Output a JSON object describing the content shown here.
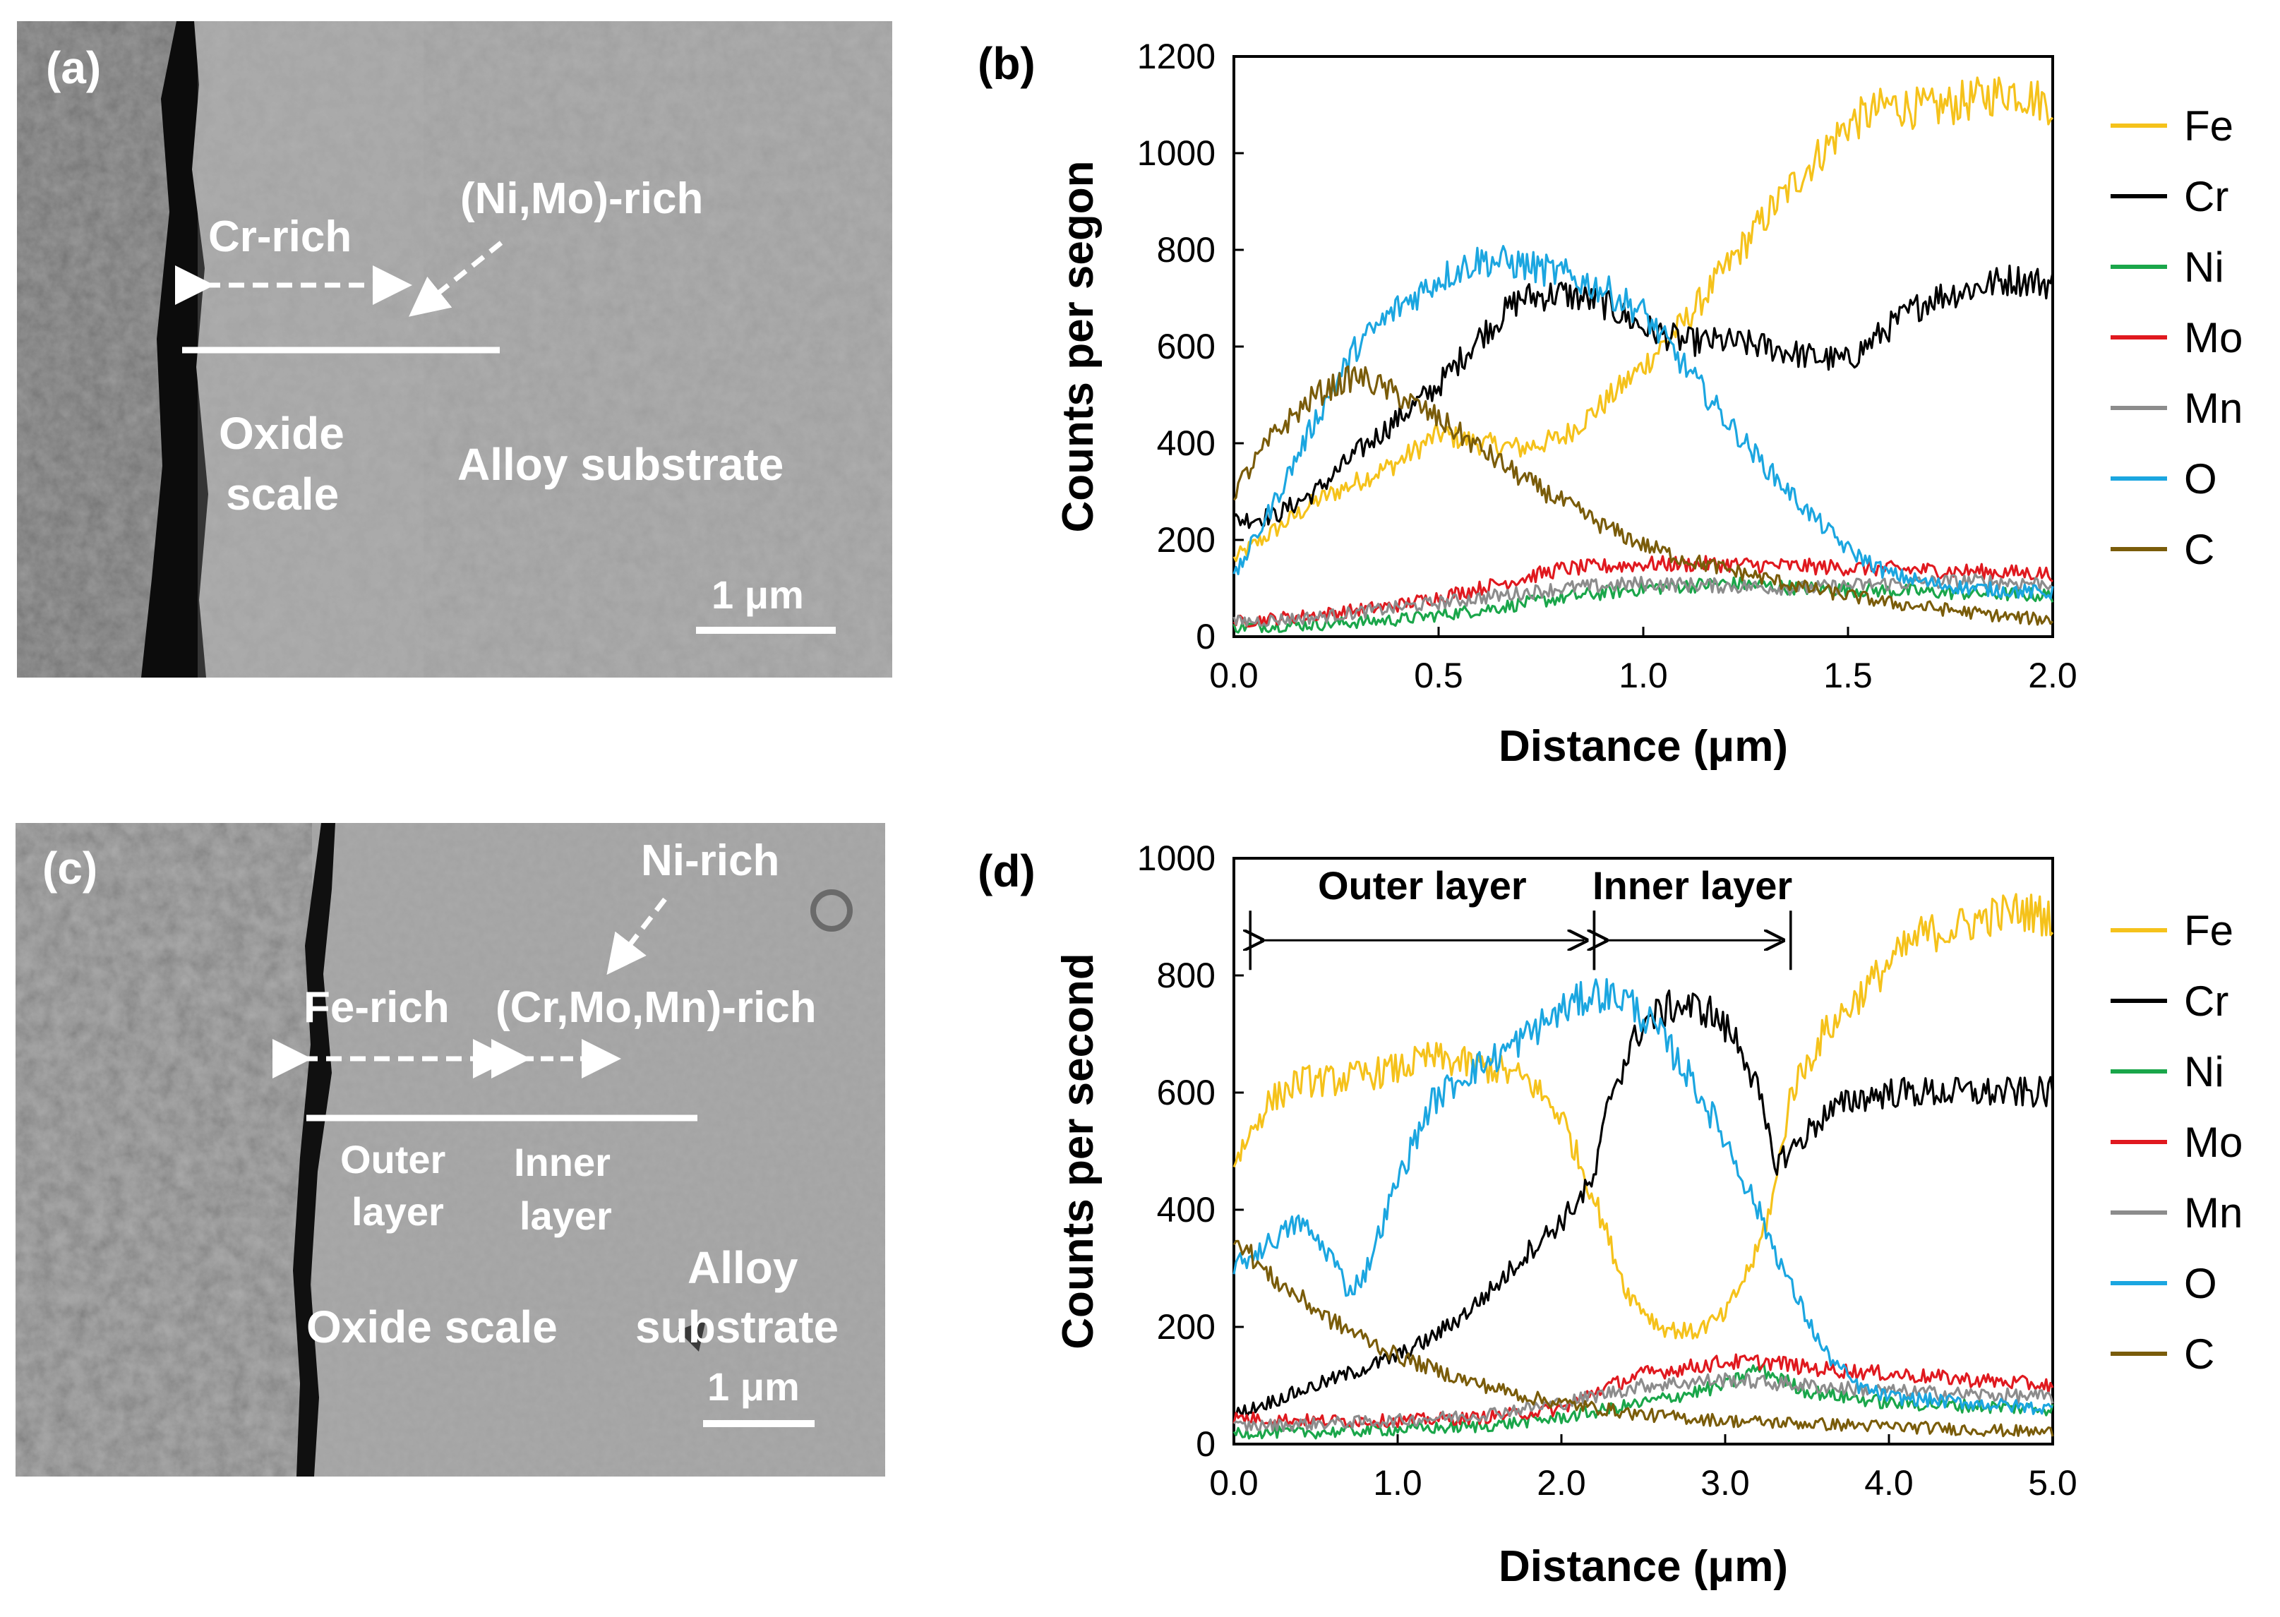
{
  "panels": {
    "a": {
      "label": "(a)",
      "annotations": {
        "cr_rich": "Cr-rich",
        "ni_mo_rich": "(Ni,Mo)-rich",
        "oxide_scale_1": "Oxide",
        "oxide_scale_2": "scale",
        "alloy_substrate": "Alloy substrate",
        "scale_bar": "1 μm"
      }
    },
    "b": {
      "label": "(b)"
    },
    "c": {
      "label": "(c)",
      "annotations": {
        "ni_rich": "Ni-rich",
        "fe_rich": "Fe-rich",
        "cr_mo_mn_rich": "(Cr,Mo,Mn)-rich",
        "outer_layer_1": "Outer",
        "outer_layer_2": "layer",
        "inner_layer_1": "Inner",
        "inner_layer_2": "layer",
        "oxide_scale": "Oxide scale",
        "alloy_substrate_1": "Alloy",
        "alloy_substrate_2": "substrate",
        "scale_bar": "1 μm"
      }
    },
    "d": {
      "label": "(d)"
    }
  },
  "colors": {
    "Fe": "#f5c21b",
    "Cr": "#000000",
    "Ni": "#1aa64a",
    "Mo": "#e0191f",
    "Mn": "#8c8c8c",
    "O": "#1ba6e0",
    "C": "#7a5c0a"
  },
  "chart_data": [
    {
      "type": "line",
      "panel": "b",
      "xlabel": "Distance (μm)",
      "ylabel": "Counts per segon",
      "xlim": [
        0,
        2.0
      ],
      "ylim": [
        0,
        1200
      ],
      "xticks": [
        0.0,
        0.5,
        1.0,
        1.5,
        2.0
      ],
      "xtick_labels": [
        "0.0",
        "0.5",
        "1.0",
        "1.5",
        "2.0"
      ],
      "yticks": [
        0,
        200,
        400,
        600,
        800,
        1000,
        1200
      ],
      "ytick_labels": [
        "0",
        "200",
        "400",
        "600",
        "800",
        "1000",
        "1200"
      ],
      "legend": [
        "Fe",
        "Cr",
        "Ni",
        "Mo",
        "Mn",
        "O",
        "C"
      ],
      "legend_position": "right",
      "noise": 35,
      "series": [
        {
          "name": "Fe",
          "x": [
            0,
            0.1,
            0.2,
            0.3,
            0.4,
            0.5,
            0.6,
            0.7,
            0.8,
            0.9,
            1.0,
            1.1,
            1.2,
            1.3,
            1.4,
            1.5,
            1.6,
            1.7,
            1.8,
            1.9,
            2.0
          ],
          "y": [
            160,
            220,
            280,
            320,
            360,
            420,
            400,
            390,
            410,
            480,
            560,
            650,
            760,
            870,
            970,
            1060,
            1100,
            1090,
            1110,
            1130,
            1100
          ]
        },
        {
          "name": "Cr",
          "x": [
            0,
            0.1,
            0.2,
            0.3,
            0.4,
            0.5,
            0.6,
            0.7,
            0.8,
            0.9,
            1.0,
            1.1,
            1.2,
            1.3,
            1.4,
            1.5,
            1.6,
            1.7,
            1.8,
            1.9,
            2.0
          ],
          "y": [
            240,
            250,
            300,
            380,
            450,
            520,
            620,
            700,
            710,
            690,
            640,
            610,
            610,
            600,
            580,
            570,
            640,
            700,
            720,
            740,
            730
          ]
        },
        {
          "name": "Ni",
          "x": [
            0,
            0.2,
            0.4,
            0.6,
            0.8,
            1.0,
            1.2,
            1.4,
            1.6,
            1.8,
            2.0
          ],
          "y": [
            20,
            25,
            35,
            55,
            80,
            100,
            110,
            100,
            95,
            90,
            85
          ]
        },
        {
          "name": "Mo",
          "x": [
            0,
            0.2,
            0.4,
            0.6,
            0.8,
            1.0,
            1.2,
            1.4,
            1.6,
            1.8,
            2.0
          ],
          "y": [
            30,
            45,
            65,
            100,
            140,
            150,
            150,
            145,
            140,
            135,
            130
          ]
        },
        {
          "name": "Mn",
          "x": [
            0,
            0.2,
            0.4,
            0.6,
            0.8,
            1.0,
            1.2,
            1.4,
            1.6,
            1.8,
            2.0
          ],
          "y": [
            30,
            40,
            60,
            80,
            100,
            110,
            105,
            100,
            110,
            115,
            110
          ]
        },
        {
          "name": "O",
          "x": [
            0,
            0.1,
            0.2,
            0.3,
            0.4,
            0.5,
            0.6,
            0.7,
            0.8,
            0.9,
            1.0,
            1.1,
            1.2,
            1.3,
            1.4,
            1.5,
            1.6,
            1.7,
            1.8,
            1.9,
            2.0
          ],
          "y": [
            120,
            280,
            450,
            600,
            680,
            740,
            780,
            770,
            750,
            720,
            670,
            560,
            450,
            350,
            260,
            180,
            130,
            110,
            100,
            95,
            90
          ]
        },
        {
          "name": "C",
          "x": [
            0,
            0.1,
            0.2,
            0.3,
            0.4,
            0.5,
            0.6,
            0.7,
            0.8,
            0.9,
            1.0,
            1.1,
            1.2,
            1.3,
            1.4,
            1.5,
            1.6,
            1.7,
            1.8,
            1.9,
            2.0
          ],
          "y": [
            300,
            420,
            500,
            540,
            500,
            450,
            390,
            330,
            280,
            230,
            190,
            160,
            140,
            120,
            100,
            85,
            70,
            60,
            50,
            40,
            35
          ]
        }
      ]
    },
    {
      "type": "line",
      "panel": "d",
      "xlabel": "Distance (μm)",
      "ylabel": "Counts per second",
      "xlim": [
        0,
        5.0
      ],
      "ylim": [
        0,
        1000
      ],
      "xticks": [
        0.0,
        1.0,
        2.0,
        3.0,
        4.0,
        5.0
      ],
      "xtick_labels": [
        "0.0",
        "1.0",
        "2.0",
        "3.0",
        "4.0",
        "5.0"
      ],
      "yticks": [
        0,
        200,
        400,
        600,
        800,
        1000
      ],
      "ytick_labels": [
        "0",
        "200",
        "400",
        "600",
        "800",
        "1000"
      ],
      "legend": [
        "Fe",
        "Cr",
        "Ni",
        "Mo",
        "Mn",
        "O",
        "C"
      ],
      "legend_position": "right",
      "noise": 28,
      "annotations": [
        {
          "text": "Outer layer",
          "from": 0.1,
          "to": 2.2,
          "y": 860
        },
        {
          "text": "Inner layer",
          "from": 2.2,
          "to": 3.4,
          "y": 860
        }
      ],
      "series": [
        {
          "name": "Fe",
          "x": [
            0,
            0.2,
            0.4,
            0.6,
            0.8,
            1.0,
            1.2,
            1.4,
            1.6,
            1.8,
            2.0,
            2.2,
            2.4,
            2.6,
            2.8,
            3.0,
            3.2,
            3.3,
            3.4,
            3.6,
            3.8,
            4.0,
            4.2,
            4.4,
            4.6,
            4.8,
            5.0
          ],
          "y": [
            480,
            580,
            620,
            620,
            630,
            640,
            660,
            650,
            640,
            620,
            560,
            420,
            260,
            200,
            190,
            220,
            330,
            430,
            600,
            700,
            760,
            820,
            870,
            880,
            900,
            910,
            900
          ]
        },
        {
          "name": "Cr",
          "x": [
            0,
            0.2,
            0.4,
            0.6,
            0.8,
            1.0,
            1.2,
            1.4,
            1.6,
            1.8,
            2.0,
            2.2,
            2.3,
            2.5,
            2.7,
            2.9,
            3.1,
            3.2,
            3.3,
            3.4,
            3.6,
            3.8,
            4.0,
            4.2,
            4.4,
            4.6,
            4.8,
            5.0
          ],
          "y": [
            50,
            70,
            90,
            110,
            130,
            150,
            180,
            220,
            270,
            330,
            380,
            450,
            600,
            720,
            750,
            740,
            680,
            600,
            480,
            500,
            560,
            590,
            600,
            600,
            600,
            600,
            600,
            600
          ]
        },
        {
          "name": "Ni",
          "x": [
            0,
            0.5,
            1.0,
            1.5,
            2.0,
            2.5,
            3.0,
            3.2,
            3.5,
            4.0,
            4.5,
            5.0
          ],
          "y": [
            20,
            20,
            25,
            30,
            45,
            70,
            100,
            130,
            90,
            70,
            65,
            60
          ]
        },
        {
          "name": "Mo",
          "x": [
            0,
            0.5,
            1.0,
            1.5,
            2.0,
            2.2,
            2.5,
            3.0,
            3.3,
            3.5,
            4.0,
            4.5,
            5.0
          ],
          "y": [
            45,
            40,
            40,
            45,
            60,
            90,
            120,
            140,
            140,
            130,
            120,
            110,
            100
          ]
        },
        {
          "name": "Mn",
          "x": [
            0,
            0.5,
            1.0,
            1.5,
            2.0,
            2.5,
            3.0,
            3.5,
            4.0,
            4.5,
            5.0
          ],
          "y": [
            30,
            35,
            40,
            50,
            70,
            100,
            110,
            100,
            90,
            85,
            80
          ]
        },
        {
          "name": "O",
          "x": [
            0,
            0.2,
            0.4,
            0.6,
            0.7,
            0.8,
            1.0,
            1.2,
            1.4,
            1.6,
            1.8,
            2.0,
            2.2,
            2.4,
            2.6,
            2.8,
            3.0,
            3.2,
            3.4,
            3.6,
            3.8,
            4.0,
            4.5,
            5.0
          ],
          "y": [
            300,
            340,
            380,
            320,
            260,
            290,
            450,
            580,
            630,
            660,
            700,
            740,
            770,
            760,
            700,
            620,
            520,
            400,
            270,
            160,
            100,
            80,
            70,
            60
          ]
        },
        {
          "name": "C",
          "x": [
            0,
            0.2,
            0.4,
            0.6,
            0.8,
            1.0,
            1.2,
            1.4,
            1.6,
            1.8,
            2.0,
            2.5,
            3.0,
            3.5,
            4.0,
            4.5,
            5.0
          ],
          "y": [
            360,
            290,
            250,
            210,
            180,
            150,
            130,
            110,
            95,
            80,
            70,
            50,
            40,
            35,
            30,
            25,
            20
          ]
        }
      ]
    }
  ]
}
